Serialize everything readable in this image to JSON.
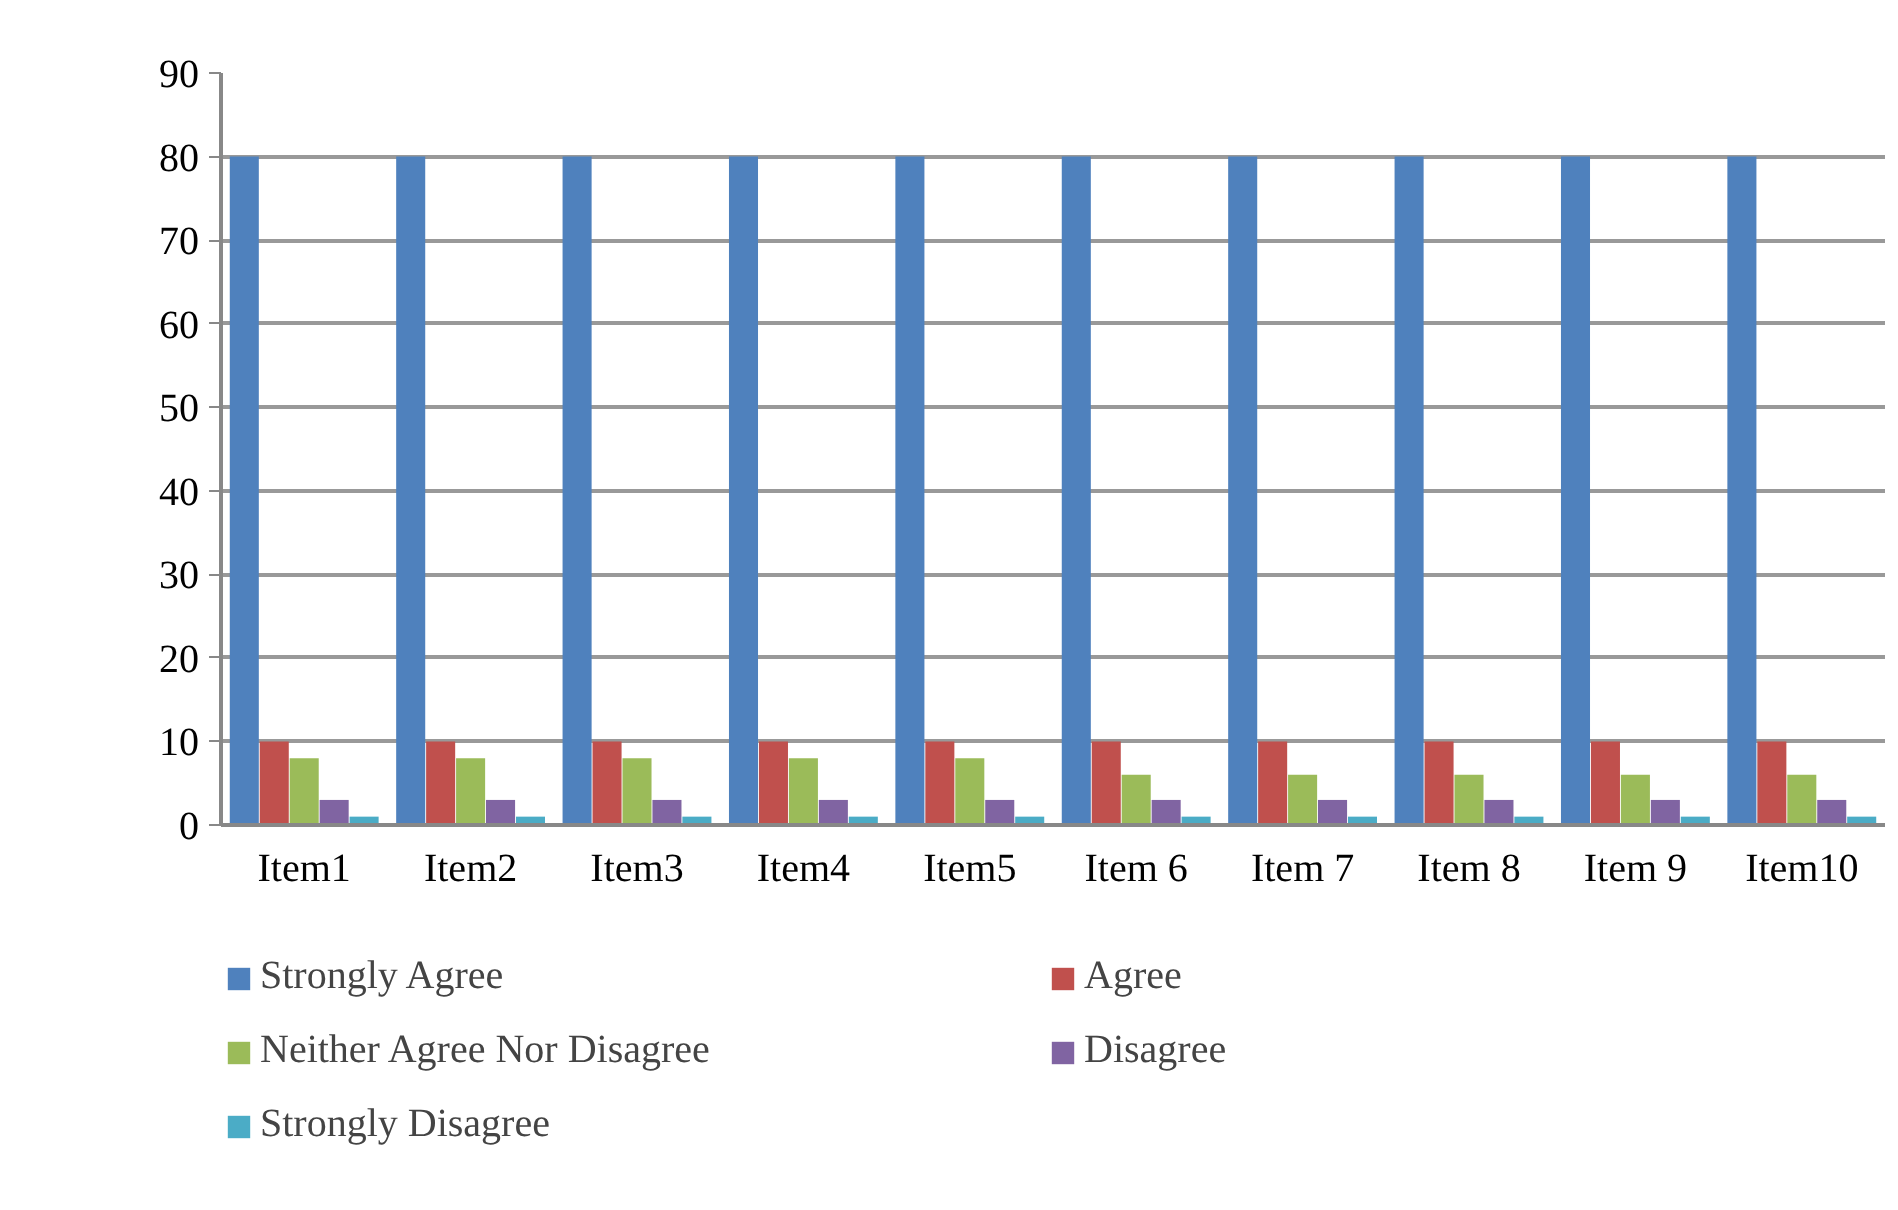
{
  "chart_data": {
    "type": "bar",
    "categories": [
      "Item1",
      "Item2",
      "Item3",
      "Item4",
      "Item5",
      "Item 6",
      "Item 7",
      "Item 8",
      "Item 9",
      "Item10"
    ],
    "series": [
      {
        "name": "Strongly Agree",
        "color": "#4f81bd",
        "values": [
          80,
          80,
          80,
          80,
          80,
          80,
          80,
          80,
          80,
          80
        ]
      },
      {
        "name": "Agree",
        "color": "#c0504d",
        "values": [
          10,
          10,
          10,
          10,
          10,
          10,
          10,
          10,
          10,
          10
        ]
      },
      {
        "name": "Neither Agree Nor Disagree",
        "color": "#9bbb59",
        "values": [
          8,
          8,
          8,
          8,
          8,
          6,
          6,
          6,
          6,
          6
        ]
      },
      {
        "name": "Disagree",
        "color": "#8064a2",
        "values": [
          3,
          3,
          3,
          3,
          3,
          3,
          3,
          3,
          3,
          3
        ]
      },
      {
        "name": "Strongly Disagree",
        "color": "#4bacc6",
        "values": [
          1,
          1,
          1,
          1,
          1,
          1,
          1,
          1,
          1,
          1
        ]
      }
    ],
    "ylim": [
      0,
      90
    ],
    "yticks": [
      0,
      10,
      20,
      30,
      40,
      50,
      60,
      70,
      80,
      90
    ],
    "grid": "y",
    "legend": "bottom"
  }
}
